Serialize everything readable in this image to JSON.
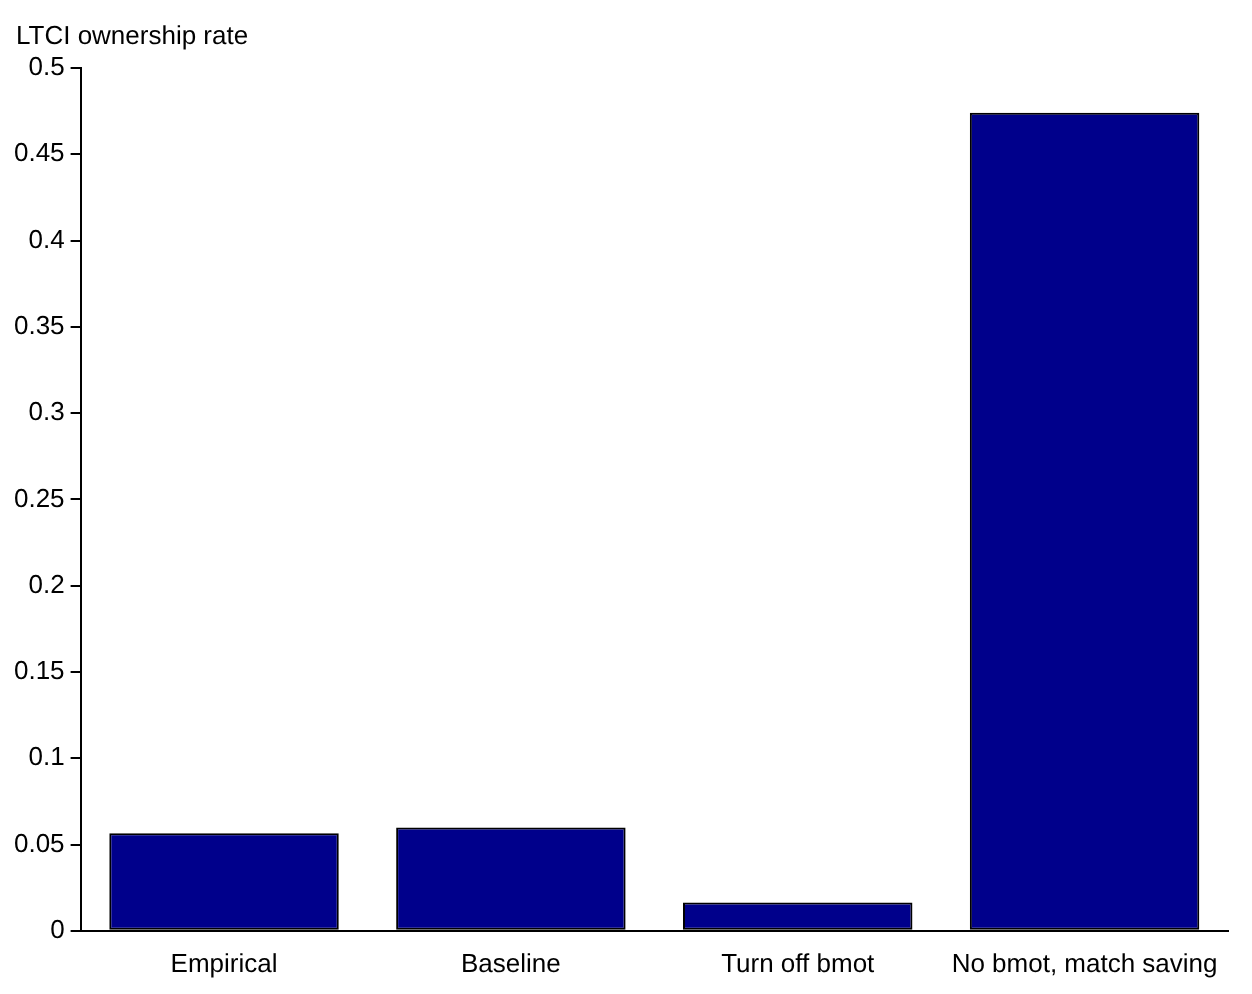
{
  "chart_data": {
    "type": "bar",
    "ylabel": "LTCI ownership rate",
    "categories": [
      "Empirical",
      "Baseline",
      "Turn off bmot",
      "No bmot, match saving"
    ],
    "values": [
      0.0565,
      0.0598,
      0.0164,
      0.474
    ],
    "color": "#00008b",
    "ylim": [
      0,
      0.5
    ],
    "yticks": [
      0,
      0.05,
      0.1,
      0.15,
      0.2,
      0.25,
      0.3,
      0.35,
      0.4,
      0.45,
      0.5
    ],
    "grid": false,
    "legend": false
  }
}
